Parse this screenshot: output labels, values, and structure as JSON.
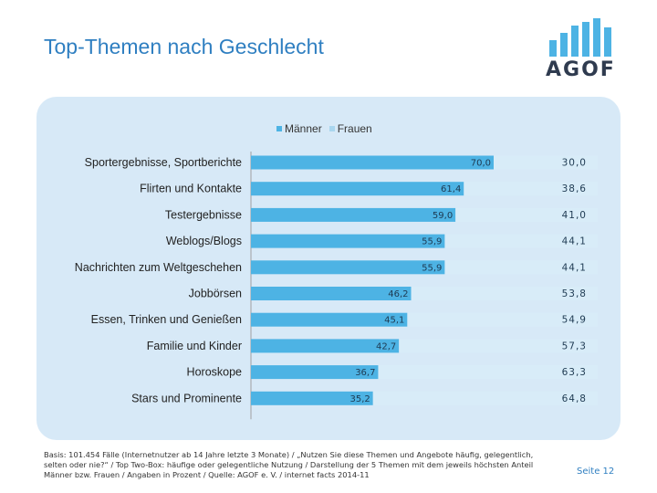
{
  "page": {
    "title": "Top-Themen nach Geschlecht",
    "logo_text": "AGOF",
    "footnote": "Basis: 101.454 Fälle (Internetnutzer ab 14 Jahre letzte 3 Monate) / „Nutzen Sie diese Themen und Angebote häufig, gelegentlich, selten oder nie?“ / Top Two-Box: häufige oder gelegentliche Nutzung / Darstellung der 5 Themen mit dem jeweils höchsten Anteil Männer bzw. Frauen / Angaben in Prozent / Quelle: AGOF e. V. / internet facts 2014-11",
    "page_number": "Seite 12"
  },
  "colors": {
    "title": "#2f7fc1",
    "male": "#4db3e4",
    "female": "#d8ecf8",
    "panel": "#d7e9f7",
    "logo_bars": "#4db3e4",
    "logo_text": "#2f3b4f"
  },
  "chart_data": {
    "type": "bar",
    "orientation": "horizontal",
    "stacked": "100%",
    "categories": [
      "Sportergebnisse, Sportberichte",
      "Flirten und Kontakte",
      "Testergebnisse",
      "Weblogs/Blogs",
      "Nachrichten zum Weltgeschehen",
      "Jobbörsen",
      "Essen, Trinken und Genießen",
      "Familie und Kinder",
      "Horoskope",
      "Stars und Prominente"
    ],
    "series": [
      {
        "name": "Männer",
        "values": [
          70.0,
          61.4,
          59.0,
          55.9,
          55.9,
          46.2,
          45.1,
          42.7,
          36.7,
          35.2
        ],
        "labels": [
          "70,0",
          "61,4",
          "59,0",
          "55,9",
          "55,9",
          "46,2",
          "45,1",
          "42,7",
          "36,7",
          "35,2"
        ]
      },
      {
        "name": "Frauen",
        "values": [
          30.0,
          38.6,
          41.0,
          44.1,
          44.1,
          53.8,
          54.9,
          57.3,
          63.3,
          64.8
        ],
        "labels": [
          "30,0",
          "38,6",
          "41,0",
          "44,1",
          "44,1",
          "53,8",
          "54,9",
          "57,3",
          "63,3",
          "64,8"
        ]
      }
    ],
    "xlim": [
      0,
      100
    ],
    "legend_position": "top-center",
    "grid": false
  }
}
